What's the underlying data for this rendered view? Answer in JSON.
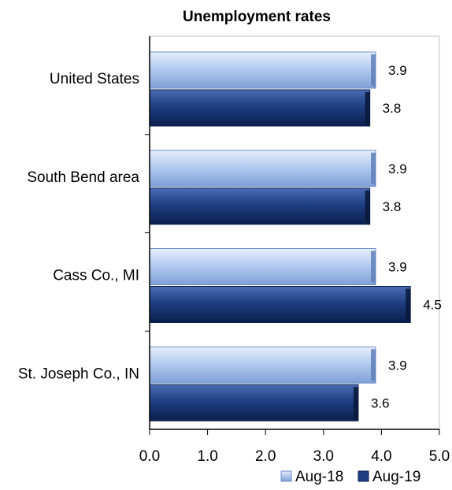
{
  "chart_data": {
    "type": "bar",
    "orientation": "horizontal",
    "title": "Unemployment rates",
    "xlabel": "",
    "ylabel": "",
    "categories": [
      "United States",
      "South Bend area",
      "Cass Co., MI",
      "St. Joseph Co., IN"
    ],
    "series": [
      {
        "name": "Aug-18",
        "values": [
          3.9,
          3.9,
          3.9,
          3.9
        ],
        "color": "#a9c4ec"
      },
      {
        "name": "Aug-19",
        "values": [
          3.8,
          3.8,
          4.5,
          3.6
        ],
        "color": "#1f3f82"
      }
    ],
    "xlim": [
      0,
      5
    ],
    "xticks": [
      "0.0",
      "1.0",
      "2.0",
      "3.0",
      "4.0",
      "5.0"
    ],
    "grid": false,
    "legend_position": "bottom"
  }
}
